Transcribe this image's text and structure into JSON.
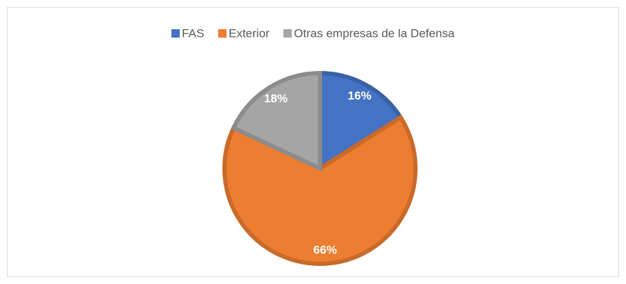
{
  "chart_data": {
    "type": "pie",
    "categories": [
      "FAS",
      "Exterior",
      "Otras empresas de la Defensa"
    ],
    "values": [
      16,
      66,
      18
    ],
    "value_labels": [
      "16%",
      "66%",
      "18%"
    ],
    "colors": [
      "#4472c4",
      "#ed7d31",
      "#a5a5a5"
    ],
    "legend": "top"
  }
}
